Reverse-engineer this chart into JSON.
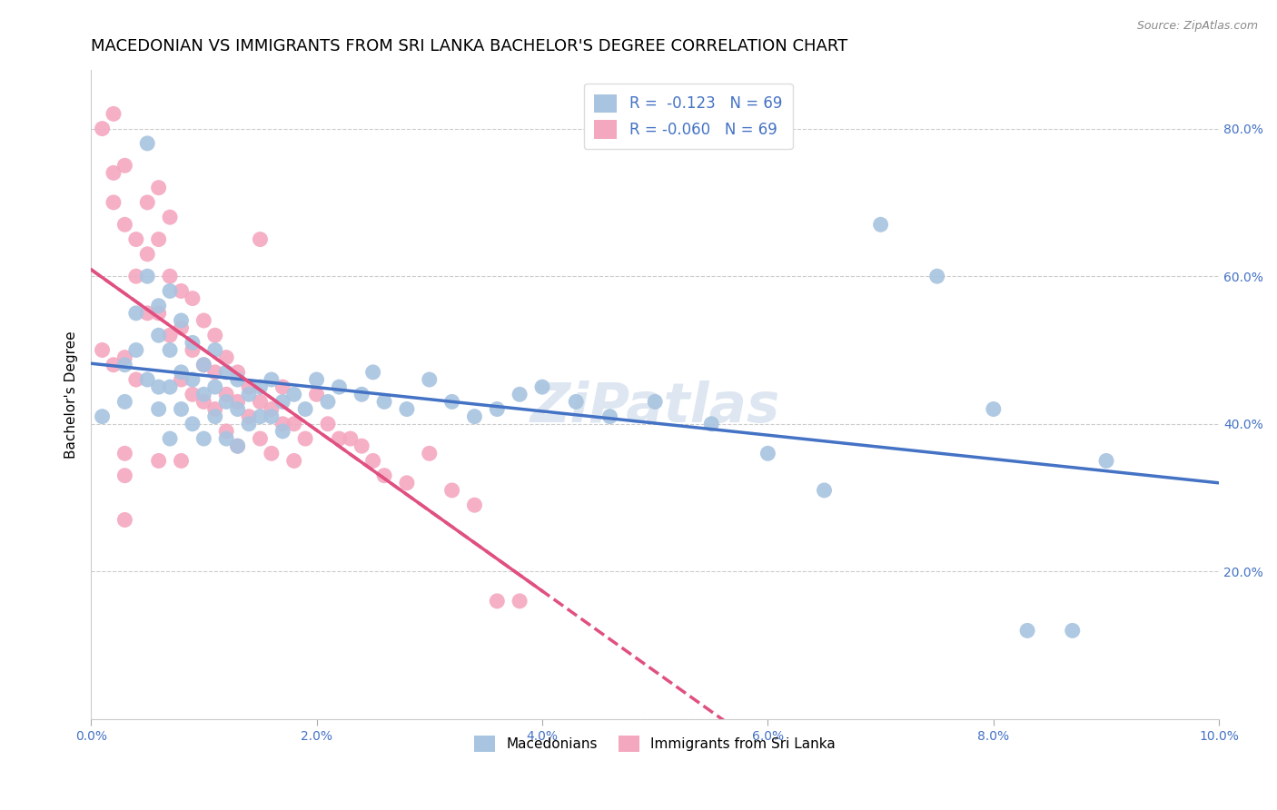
{
  "title": "MACEDONIAN VS IMMIGRANTS FROM SRI LANKA BACHELOR'S DEGREE CORRELATION CHART",
  "source": "Source: ZipAtlas.com",
  "ylabel": "Bachelor's Degree",
  "xlabel": "",
  "xlim": [
    0.0,
    0.1
  ],
  "ylim": [
    0.0,
    0.88
  ],
  "xticks": [
    0.0,
    0.02,
    0.04,
    0.06,
    0.08,
    0.1
  ],
  "xticklabels": [
    "0.0%",
    "2.0%",
    "4.0%",
    "6.0%",
    "8.0%",
    "10.0%"
  ],
  "yticks": [
    0.0,
    0.2,
    0.4,
    0.6,
    0.8
  ],
  "yticklabels": [
    "",
    "20.0%",
    "40.0%",
    "60.0%",
    "80.0%"
  ],
  "grid_color": "#cccccc",
  "background_color": "#ffffff",
  "blue_color": "#a8c4e0",
  "pink_color": "#f4a8c0",
  "blue_line_color": "#4472c4",
  "pink_line_color": "#e05080",
  "title_fontsize": 13,
  "axis_label_fontsize": 11,
  "tick_fontsize": 10,
  "tick_color": "#4472c4",
  "R_blue": -0.123,
  "R_pink": -0.06,
  "N": 69,
  "blue_scatter_x": [
    0.001,
    0.003,
    0.003,
    0.004,
    0.004,
    0.005,
    0.005,
    0.005,
    0.006,
    0.006,
    0.006,
    0.006,
    0.007,
    0.007,
    0.007,
    0.007,
    0.008,
    0.008,
    0.008,
    0.009,
    0.009,
    0.009,
    0.01,
    0.01,
    0.01,
    0.011,
    0.011,
    0.011,
    0.012,
    0.012,
    0.012,
    0.013,
    0.013,
    0.013,
    0.014,
    0.014,
    0.015,
    0.015,
    0.016,
    0.016,
    0.017,
    0.017,
    0.018,
    0.019,
    0.02,
    0.021,
    0.022,
    0.024,
    0.025,
    0.026,
    0.028,
    0.03,
    0.032,
    0.034,
    0.036,
    0.038,
    0.04,
    0.043,
    0.046,
    0.05,
    0.055,
    0.06,
    0.065,
    0.07,
    0.075,
    0.08,
    0.083,
    0.087,
    0.09
  ],
  "blue_scatter_y": [
    0.41,
    0.48,
    0.43,
    0.55,
    0.5,
    0.78,
    0.6,
    0.46,
    0.45,
    0.56,
    0.52,
    0.42,
    0.58,
    0.5,
    0.45,
    0.38,
    0.54,
    0.47,
    0.42,
    0.51,
    0.46,
    0.4,
    0.48,
    0.44,
    0.38,
    0.5,
    0.45,
    0.41,
    0.47,
    0.43,
    0.38,
    0.46,
    0.42,
    0.37,
    0.44,
    0.4,
    0.45,
    0.41,
    0.46,
    0.41,
    0.43,
    0.39,
    0.44,
    0.42,
    0.46,
    0.43,
    0.45,
    0.44,
    0.47,
    0.43,
    0.42,
    0.46,
    0.43,
    0.41,
    0.42,
    0.44,
    0.45,
    0.43,
    0.41,
    0.43,
    0.4,
    0.36,
    0.31,
    0.67,
    0.6,
    0.42,
    0.12,
    0.12,
    0.35
  ],
  "pink_scatter_x": [
    0.001,
    0.001,
    0.002,
    0.002,
    0.002,
    0.003,
    0.003,
    0.003,
    0.004,
    0.004,
    0.004,
    0.005,
    0.005,
    0.005,
    0.006,
    0.006,
    0.006,
    0.007,
    0.007,
    0.007,
    0.008,
    0.008,
    0.008,
    0.009,
    0.009,
    0.009,
    0.01,
    0.01,
    0.01,
    0.011,
    0.011,
    0.011,
    0.012,
    0.012,
    0.012,
    0.013,
    0.013,
    0.013,
    0.014,
    0.014,
    0.015,
    0.015,
    0.016,
    0.016,
    0.017,
    0.017,
    0.018,
    0.018,
    0.019,
    0.02,
    0.021,
    0.022,
    0.023,
    0.024,
    0.025,
    0.026,
    0.028,
    0.03,
    0.032,
    0.034,
    0.036,
    0.038,
    0.015,
    0.008,
    0.006,
    0.003,
    0.003,
    0.003,
    0.002
  ],
  "pink_scatter_y": [
    0.8,
    0.5,
    0.82,
    0.74,
    0.7,
    0.75,
    0.67,
    0.49,
    0.65,
    0.6,
    0.46,
    0.7,
    0.63,
    0.55,
    0.72,
    0.65,
    0.55,
    0.68,
    0.6,
    0.52,
    0.58,
    0.53,
    0.46,
    0.57,
    0.5,
    0.44,
    0.54,
    0.48,
    0.43,
    0.52,
    0.47,
    0.42,
    0.49,
    0.44,
    0.39,
    0.47,
    0.43,
    0.37,
    0.45,
    0.41,
    0.43,
    0.38,
    0.42,
    0.36,
    0.45,
    0.4,
    0.4,
    0.35,
    0.38,
    0.44,
    0.4,
    0.38,
    0.38,
    0.37,
    0.35,
    0.33,
    0.32,
    0.36,
    0.31,
    0.29,
    0.16,
    0.16,
    0.65,
    0.35,
    0.35,
    0.33,
    0.36,
    0.27,
    0.48
  ],
  "watermark": "ZiPatlas",
  "watermark_color": "#c8d8e8",
  "legend_title_blue": "Macedonians",
  "legend_title_pink": "Immigrants from Sri Lanka"
}
